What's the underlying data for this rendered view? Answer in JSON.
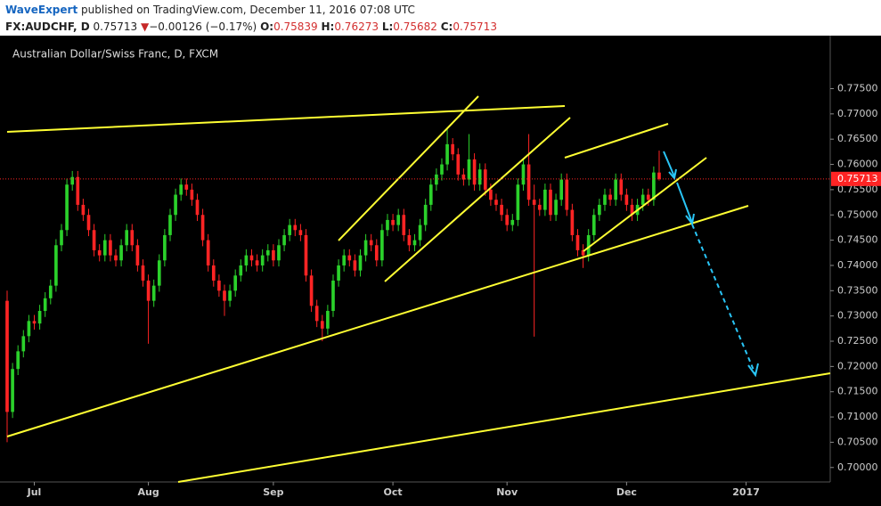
{
  "header": {
    "publisher": "WaveExpert",
    "published": "published on TradingView.com, December 11, 2016 07:08 UTC",
    "symbol": "FX:AUDCHF, D",
    "last": "0.75713",
    "arrow": "▼",
    "change": "−0.00126 (−0.17%)",
    "ohlc": [
      {
        "label": "O:",
        "value": "0.75839"
      },
      {
        "label": "H:",
        "value": "0.76273"
      },
      {
        "label": "L:",
        "value": "0.75682"
      },
      {
        "label": "C:",
        "value": "0.75713"
      }
    ]
  },
  "chart_data": {
    "type": "candlestick",
    "title": "Australian Dollar/Swiss Franc, D, FXCM",
    "colors": {
      "up": "#2bd12b",
      "down": "#ff2424",
      "last_price": "#ff2424"
    },
    "last_price_line": true,
    "xlim": [
      -1.31,
      151.48
    ],
    "xticks": [
      {
        "value": 5,
        "label": "Jul"
      },
      {
        "value": 26,
        "label": "Aug"
      },
      {
        "value": 49,
        "label": "Sep"
      },
      {
        "value": 71,
        "label": "Oct"
      },
      {
        "value": 92,
        "label": "Nov"
      },
      {
        "value": 114,
        "label": "Dec"
      },
      {
        "value": 136,
        "label": "2017"
      }
    ],
    "ylim": [
      0.69714,
      0.78549
    ],
    "yticks": [
      {
        "value": 0.7,
        "label": "0.70000"
      },
      {
        "value": 0.705,
        "label": "0.70500"
      },
      {
        "value": 0.71,
        "label": "0.71000"
      },
      {
        "value": 0.715,
        "label": "0.71500"
      },
      {
        "value": 0.72,
        "label": "0.72000"
      },
      {
        "value": 0.725,
        "label": "0.72500"
      },
      {
        "value": 0.73,
        "label": "0.73000"
      },
      {
        "value": 0.735,
        "label": "0.73500"
      },
      {
        "value": 0.74,
        "label": "0.74000"
      },
      {
        "value": 0.745,
        "label": "0.74500"
      },
      {
        "value": 0.75,
        "label": "0.75000"
      },
      {
        "value": 0.755,
        "label": "0.75500"
      },
      {
        "value": 0.76,
        "label": "0.76000"
      },
      {
        "value": 0.765,
        "label": "0.76500"
      },
      {
        "value": 0.77,
        "label": "0.77000"
      },
      {
        "value": 0.775,
        "label": "0.77500"
      }
    ],
    "open": [
      0.733,
      0.711,
      0.7195,
      0.723,
      0.726,
      0.729,
      0.7285,
      0.731,
      0.7335,
      0.736,
      0.744,
      0.747,
      0.756,
      0.7575,
      0.752,
      0.75,
      0.747,
      0.743,
      0.742,
      0.745,
      0.742,
      0.741,
      0.744,
      0.747,
      0.744,
      0.74,
      0.737,
      0.733,
      0.736,
      0.741,
      0.746,
      0.75,
      0.754,
      0.756,
      0.755,
      0.753,
      0.75,
      0.745,
      0.74,
      0.737,
      0.735,
      0.733,
      0.735,
      0.738,
      0.74,
      0.742,
      0.741,
      0.74,
      0.742,
      0.743,
      0.741,
      0.744,
      0.746,
      0.748,
      0.747,
      0.746,
      0.738,
      0.732,
      0.729,
      0.7275,
      0.731,
      0.737,
      0.74,
      0.742,
      0.741,
      0.739,
      0.742,
      0.745,
      0.744,
      0.741,
      0.747,
      0.749,
      0.748,
      0.75,
      0.746,
      0.744,
      0.745,
      0.748,
      0.752,
      0.756,
      0.758,
      0.76,
      0.764,
      0.762,
      0.758,
      0.757,
      0.761,
      0.756,
      0.759,
      0.755,
      0.753,
      0.752,
      0.75,
      0.748,
      0.749,
      0.756,
      0.76,
      0.753,
      0.752,
      0.751,
      0.755,
      0.75,
      0.753,
      0.757,
      0.751,
      0.746,
      0.743,
      0.742,
      0.746,
      0.75,
      0.752,
      0.754,
      0.753,
      0.757,
      0.754,
      0.752,
      0.75,
      0.752,
      0.754,
      0.753,
      0.75839
    ],
    "high": [
      0.735,
      0.7207,
      0.7242,
      0.7272,
      0.7302,
      0.7302,
      0.7322,
      0.7347,
      0.7372,
      0.7452,
      0.7482,
      0.7572,
      0.7587,
      0.7587,
      0.7532,
      0.7512,
      0.7482,
      0.7442,
      0.7462,
      0.7462,
      0.7432,
      0.7452,
      0.7482,
      0.7482,
      0.7452,
      0.7412,
      0.7382,
      0.7372,
      0.7422,
      0.7472,
      0.7512,
      0.7552,
      0.7572,
      0.7572,
      0.7562,
      0.7542,
      0.7512,
      0.7462,
      0.7412,
      0.7382,
      0.7362,
      0.7362,
      0.7392,
      0.7412,
      0.7432,
      0.7432,
      0.7422,
      0.7432,
      0.7442,
      0.7442,
      0.7452,
      0.7472,
      0.7492,
      0.7492,
      0.7482,
      0.7472,
      0.7392,
      0.7332,
      0.7302,
      0.7322,
      0.7382,
      0.7412,
      0.7432,
      0.7432,
      0.7422,
      0.7432,
      0.7462,
      0.7462,
      0.7452,
      0.7482,
      0.7502,
      0.7502,
      0.7512,
      0.7512,
      0.7472,
      0.7462,
      0.7492,
      0.7532,
      0.7572,
      0.7592,
      0.7612,
      0.767,
      0.7652,
      0.7632,
      0.7592,
      0.766,
      0.7622,
      0.7602,
      0.7602,
      0.7562,
      0.7542,
      0.7532,
      0.7512,
      0.7502,
      0.7572,
      0.7612,
      0.766,
      0.756,
      0.7532,
      0.7562,
      0.7562,
      0.7542,
      0.7582,
      0.7582,
      0.7522,
      0.7472,
      0.7442,
      0.7472,
      0.7512,
      0.7532,
      0.7552,
      0.7552,
      0.7582,
      0.7582,
      0.7552,
      0.7532,
      0.7532,
      0.7552,
      0.7552,
      0.7596,
      0.76273
    ],
    "low": [
      0.705,
      0.7098,
      0.7183,
      0.7218,
      0.7248,
      0.7273,
      0.7273,
      0.7298,
      0.7323,
      0.7348,
      0.7428,
      0.7458,
      0.7548,
      0.7508,
      0.7488,
      0.7458,
      0.7418,
      0.7408,
      0.7408,
      0.7408,
      0.7398,
      0.7398,
      0.7428,
      0.7428,
      0.7388,
      0.7358,
      0.7245,
      0.7318,
      0.7348,
      0.7398,
      0.7448,
      0.7488,
      0.7528,
      0.7538,
      0.7518,
      0.7488,
      0.7438,
      0.7388,
      0.7358,
      0.7338,
      0.73,
      0.7318,
      0.7338,
      0.7368,
      0.7388,
      0.7398,
      0.7388,
      0.7388,
      0.7408,
      0.7398,
      0.7398,
      0.7428,
      0.7448,
      0.7458,
      0.7448,
      0.7368,
      0.7308,
      0.7278,
      0.725,
      0.7263,
      0.7298,
      0.7358,
      0.7388,
      0.7398,
      0.7378,
      0.7378,
      0.7408,
      0.7428,
      0.7398,
      0.7398,
      0.7458,
      0.7468,
      0.7468,
      0.7448,
      0.7428,
      0.7428,
      0.7438,
      0.7468,
      0.7508,
      0.7548,
      0.7568,
      0.7588,
      0.7608,
      0.7568,
      0.7558,
      0.7558,
      0.7548,
      0.7548,
      0.7538,
      0.7518,
      0.7508,
      0.7488,
      0.7468,
      0.7468,
      0.7478,
      0.7548,
      0.7518,
      0.7259,
      0.7498,
      0.7498,
      0.7488,
      0.7488,
      0.7518,
      0.7498,
      0.7448,
      0.7418,
      0.7395,
      0.7408,
      0.7448,
      0.7488,
      0.7508,
      0.7518,
      0.7518,
      0.7528,
      0.7508,
      0.7488,
      0.7488,
      0.7508,
      0.7518,
      0.7518,
      0.75682
    ],
    "close": [
      0.711,
      0.7195,
      0.723,
      0.726,
      0.729,
      0.7285,
      0.731,
      0.7335,
      0.736,
      0.744,
      0.747,
      0.756,
      0.7575,
      0.752,
      0.75,
      0.747,
      0.743,
      0.742,
      0.745,
      0.742,
      0.741,
      0.744,
      0.747,
      0.744,
      0.74,
      0.737,
      0.733,
      0.736,
      0.741,
      0.746,
      0.75,
      0.754,
      0.756,
      0.755,
      0.753,
      0.75,
      0.745,
      0.74,
      0.737,
      0.735,
      0.733,
      0.735,
      0.738,
      0.74,
      0.742,
      0.741,
      0.74,
      0.742,
      0.743,
      0.741,
      0.744,
      0.746,
      0.748,
      0.747,
      0.746,
      0.738,
      0.732,
      0.729,
      0.7275,
      0.731,
      0.737,
      0.74,
      0.742,
      0.741,
      0.739,
      0.742,
      0.745,
      0.744,
      0.741,
      0.747,
      0.749,
      0.748,
      0.75,
      0.746,
      0.744,
      0.745,
      0.748,
      0.752,
      0.756,
      0.758,
      0.76,
      0.764,
      0.762,
      0.758,
      0.757,
      0.761,
      0.756,
      0.759,
      0.755,
      0.753,
      0.752,
      0.75,
      0.748,
      0.749,
      0.756,
      0.76,
      0.753,
      0.752,
      0.751,
      0.755,
      0.75,
      0.753,
      0.757,
      0.751,
      0.746,
      0.743,
      0.742,
      0.746,
      0.75,
      0.752,
      0.754,
      0.753,
      0.757,
      0.754,
      0.752,
      0.75,
      0.752,
      0.754,
      0.753,
      0.7584,
      0.75713
    ]
  }
}
